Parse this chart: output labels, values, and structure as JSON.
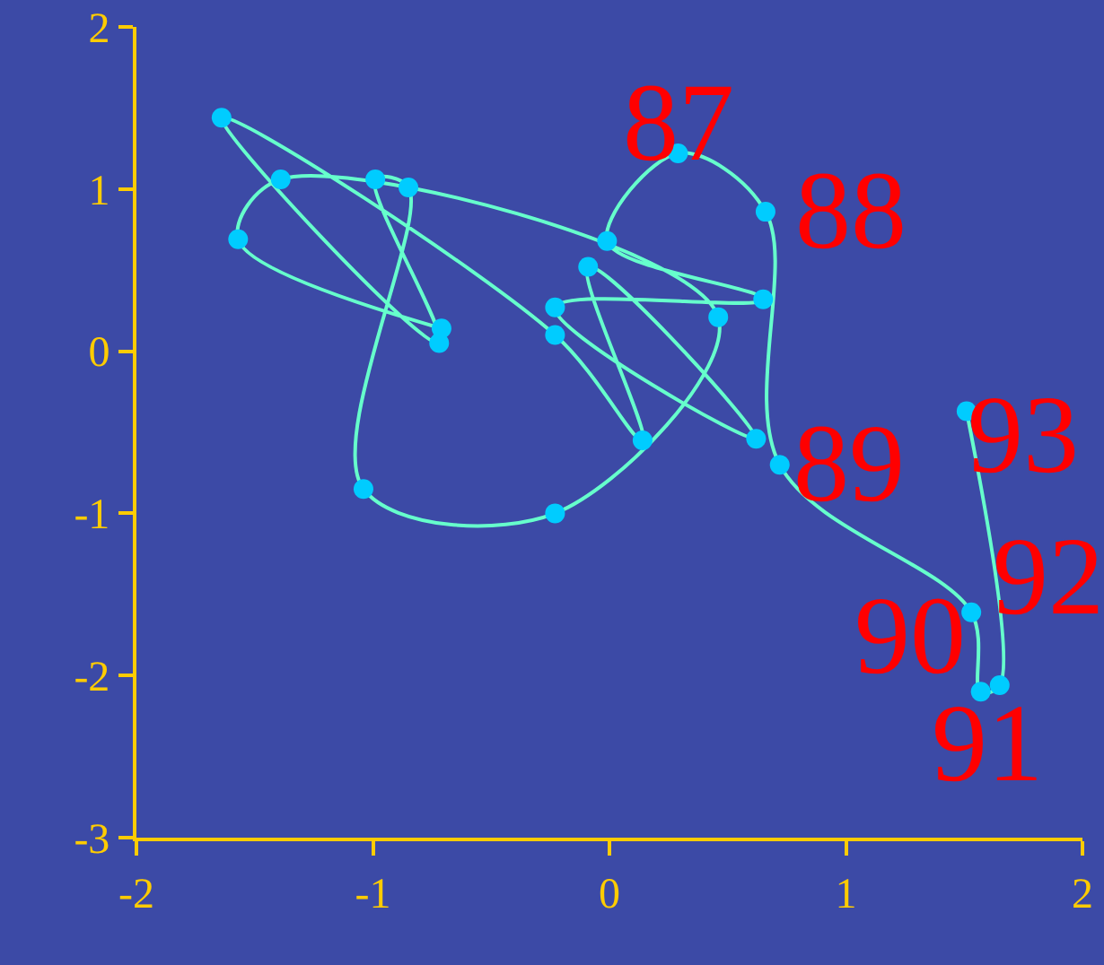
{
  "chart_data": {
    "type": "line",
    "marker": "circle",
    "grid": false,
    "legend": false,
    "x": [
      -0.71,
      -1.57,
      -1.39,
      0.46,
      -0.23,
      -1.04,
      -0.85,
      -0.99,
      -0.72,
      -1.64,
      -0.23,
      0.14,
      -0.09,
      0.62,
      -0.23,
      0.65,
      -0.01,
      0.29,
      0.66,
      0.72,
      1.53,
      1.57,
      1.65,
      1.51
    ],
    "series": [
      {
        "color": "#00ccff",
        "values": [
          0.14,
          0.69,
          1.06,
          0.21,
          -1.0,
          -0.85,
          1.01,
          1.06,
          0.05,
          1.44,
          0.1,
          -0.55,
          0.52,
          -0.54,
          0.27,
          0.32,
          0.68,
          1.22,
          0.86,
          -0.7,
          -1.61,
          -2.1,
          -2.06,
          -0.37
        ]
      }
    ],
    "xlim": [
      -2,
      2
    ],
    "xticks": [
      -2,
      -1,
      0,
      1,
      2
    ],
    "ylim": [
      -3,
      2
    ],
    "yticks": [
      -3,
      -2,
      -1,
      0,
      1,
      2
    ],
    "annotations": [
      {
        "text": "87",
        "x": 0.29,
        "y": 1.22
      },
      {
        "text": "88",
        "x": 0.66,
        "y": 0.86
      },
      {
        "text": "89",
        "x": 0.72,
        "y": -0.7
      },
      {
        "text": "90",
        "x": 1.53,
        "y": -1.61
      },
      {
        "text": "91",
        "x": 1.57,
        "y": -2.1
      },
      {
        "text": "92",
        "x": 1.65,
        "y": -2.06
      },
      {
        "text": "93",
        "x": 1.51,
        "y": -0.37
      }
    ]
  }
}
